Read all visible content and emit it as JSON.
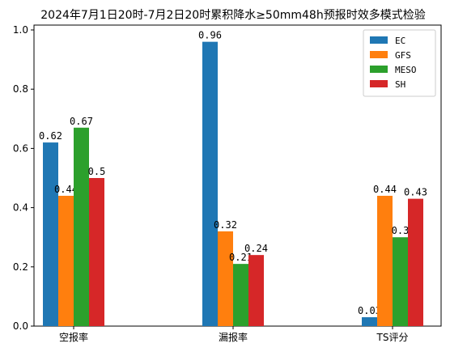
{
  "chart_data": {
    "type": "bar",
    "title": "2024年7月1日20时-7月2日20时累积降水≥50mm48h预报时效多模式检验",
    "categories": [
      "空报率",
      "漏报率",
      "TS评分"
    ],
    "series": [
      {
        "name": "EC",
        "values": [
          0.62,
          0.96,
          0.03
        ],
        "labels": [
          "0.62",
          "0.96",
          "0.03"
        ],
        "color": "#1f77b4"
      },
      {
        "name": "GFS",
        "values": [
          0.44,
          0.32,
          0.44
        ],
        "labels": [
          "0.44",
          "0.32",
          "0.44"
        ],
        "color": "#ff7f0e"
      },
      {
        "name": "MESO",
        "values": [
          0.67,
          0.21,
          0.3
        ],
        "labels": [
          "0.67",
          "0.21",
          "0.3"
        ],
        "color": "#2ca02c"
      },
      {
        "name": "SH",
        "values": [
          0.5,
          0.24,
          0.43
        ],
        "labels": [
          "0.5",
          "0.24",
          "0.43"
        ],
        "color": "#d62728"
      }
    ],
    "ylim": [
      0,
      1.0
    ],
    "yticks": [
      "0.0",
      "0.2",
      "0.4",
      "0.6",
      "0.8",
      "1.0"
    ],
    "xlabel": "",
    "ylabel": "",
    "grid": false,
    "legend": "top-right"
  }
}
